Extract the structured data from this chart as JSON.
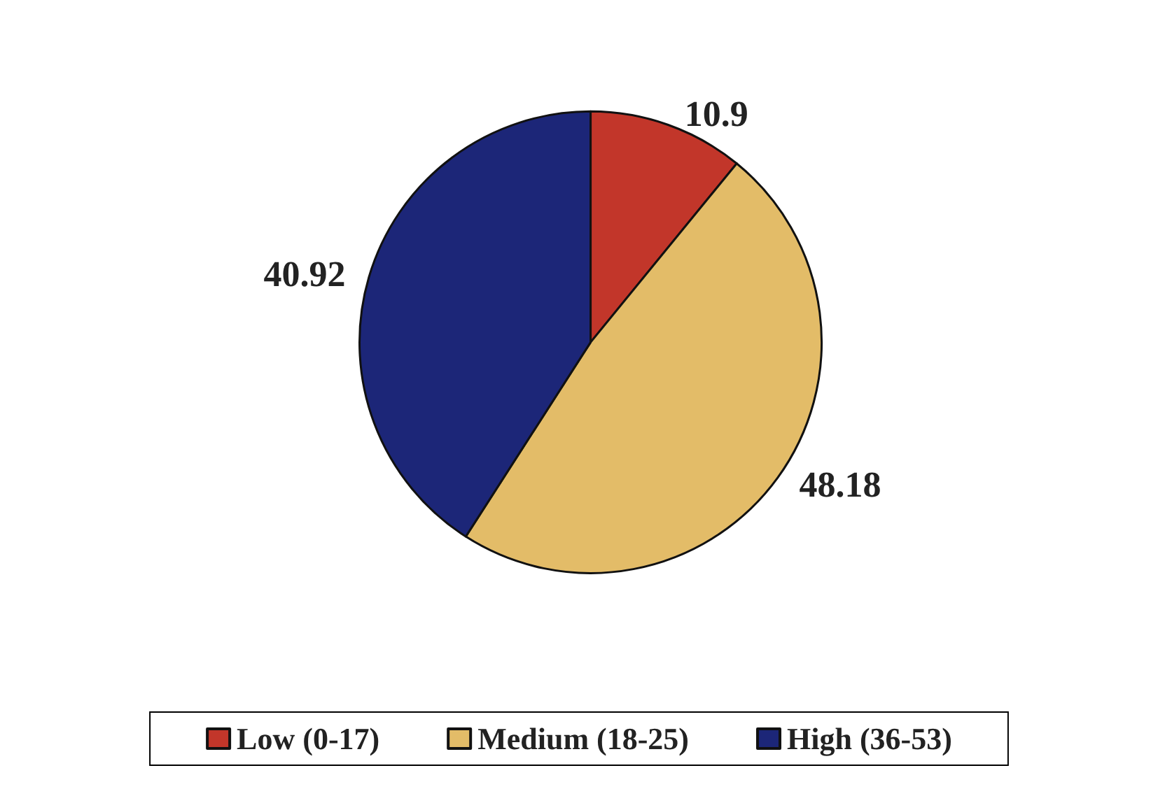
{
  "chart_data": {
    "type": "pie",
    "categories": [
      "Low (0-17)",
      "Medium (18-25)",
      "High (36-53)"
    ],
    "values": [
      10.9,
      48.18,
      40.92
    ],
    "colors": [
      "#c2362a",
      "#e3bc68",
      "#1c2678"
    ],
    "data_labels": true,
    "legend": "bottom"
  }
}
